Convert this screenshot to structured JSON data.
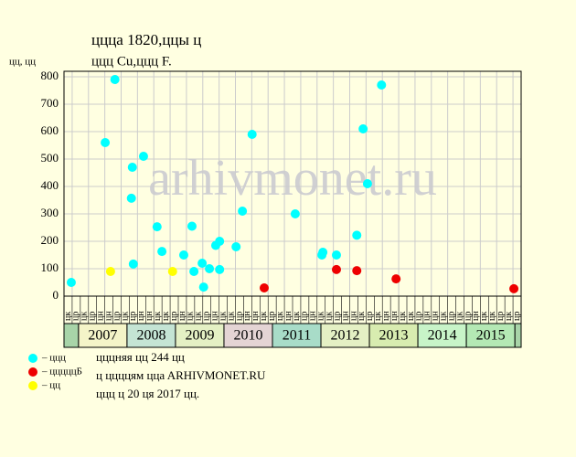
{
  "chart_data": {
    "type": "scatter",
    "title": "ццца 1820,ццы ц",
    "subtitle": "ццц Cu,ццц F.",
    "y_label": "цц, цц",
    "watermark": "arhivmonet.ru",
    "xlim": [
      2006.7,
      2016.13
    ],
    "ylim": [
      0,
      800
    ],
    "yticks": [
      0,
      100,
      200,
      300,
      400,
      500,
      600,
      700,
      800
    ],
    "grid": true,
    "columns": [
      "цк",
      "цр",
      "цк",
      "цр",
      "цн",
      "цн",
      "цр",
      "цк",
      "цр",
      "цн",
      "цн",
      "цк",
      "цк",
      "цр",
      "цн",
      "цк",
      "цк",
      "цр",
      "цн",
      "цк",
      "цк",
      "цр",
      "цн",
      "цн",
      "цк",
      "цр",
      "цк",
      "цн",
      "цк",
      "цр",
      "цн",
      "цк",
      "цк",
      "цр",
      "цн",
      "цн",
      "цк",
      "цр",
      "цк",
      "цн",
      "цн",
      "цк",
      "цк",
      "цр",
      "цн",
      "цн",
      "цк",
      "цр",
      "цк",
      "цр",
      "цн",
      "цк",
      "цк",
      "цр",
      "цк",
      "цр"
    ],
    "years": [
      2007,
      2008,
      2009,
      2010,
      2011,
      2012,
      2013,
      2014,
      2015
    ],
    "year_colors": [
      "#f4f4c8",
      "#c4e4d4",
      "#e4f0c4",
      "#e4d4d4",
      "#a8dcc8",
      "#e4f0c4",
      "#d8ecb0",
      "#c8f4c8",
      "#b4e8b4"
    ],
    "edge_color": "#a8d4a8",
    "series": [
      {
        "name": "– ццц",
        "color": "#00ffff",
        "x": [
          2006.85,
          2007.55,
          2007.75,
          2008.11,
          2008.09,
          2008.13,
          2008.34,
          2008.62,
          2008.72,
          2009.17,
          2009.34,
          2009.38,
          2009.55,
          2009.58,
          2009.7,
          2009.83,
          2009.91,
          2009.91,
          2010.25,
          2010.38,
          2010.58,
          2011.47,
          2012.02,
          2012.04,
          2012.32,
          2012.74,
          2012.87,
          2012.96,
          2013.25
        ],
        "values": [
          50,
          560,
          790,
          470,
          357,
          117,
          510,
          253,
          163,
          150,
          255,
          90,
          120,
          33,
          100,
          185,
          200,
          97,
          180,
          310,
          590,
          300,
          150,
          160,
          150,
          222,
          610,
          410,
          770
        ]
      },
      {
        "name": "– цццццБ",
        "color": "#ee0000",
        "x": [
          2010.83,
          2012.32,
          2012.74,
          2013.55,
          2015.98
        ],
        "values": [
          30,
          97,
          93,
          63,
          27
        ]
      },
      {
        "name": "– цц",
        "color": "#ffff00",
        "x": [
          2007.66,
          2008.94
        ],
        "values": [
          90,
          90
        ]
      }
    ],
    "notes": [
      "цццняя цц 244 цц",
      "ц ццццям ццa ARHIVMONET.RU",
      "ццц ц 20 ця 2017 цц."
    ]
  }
}
